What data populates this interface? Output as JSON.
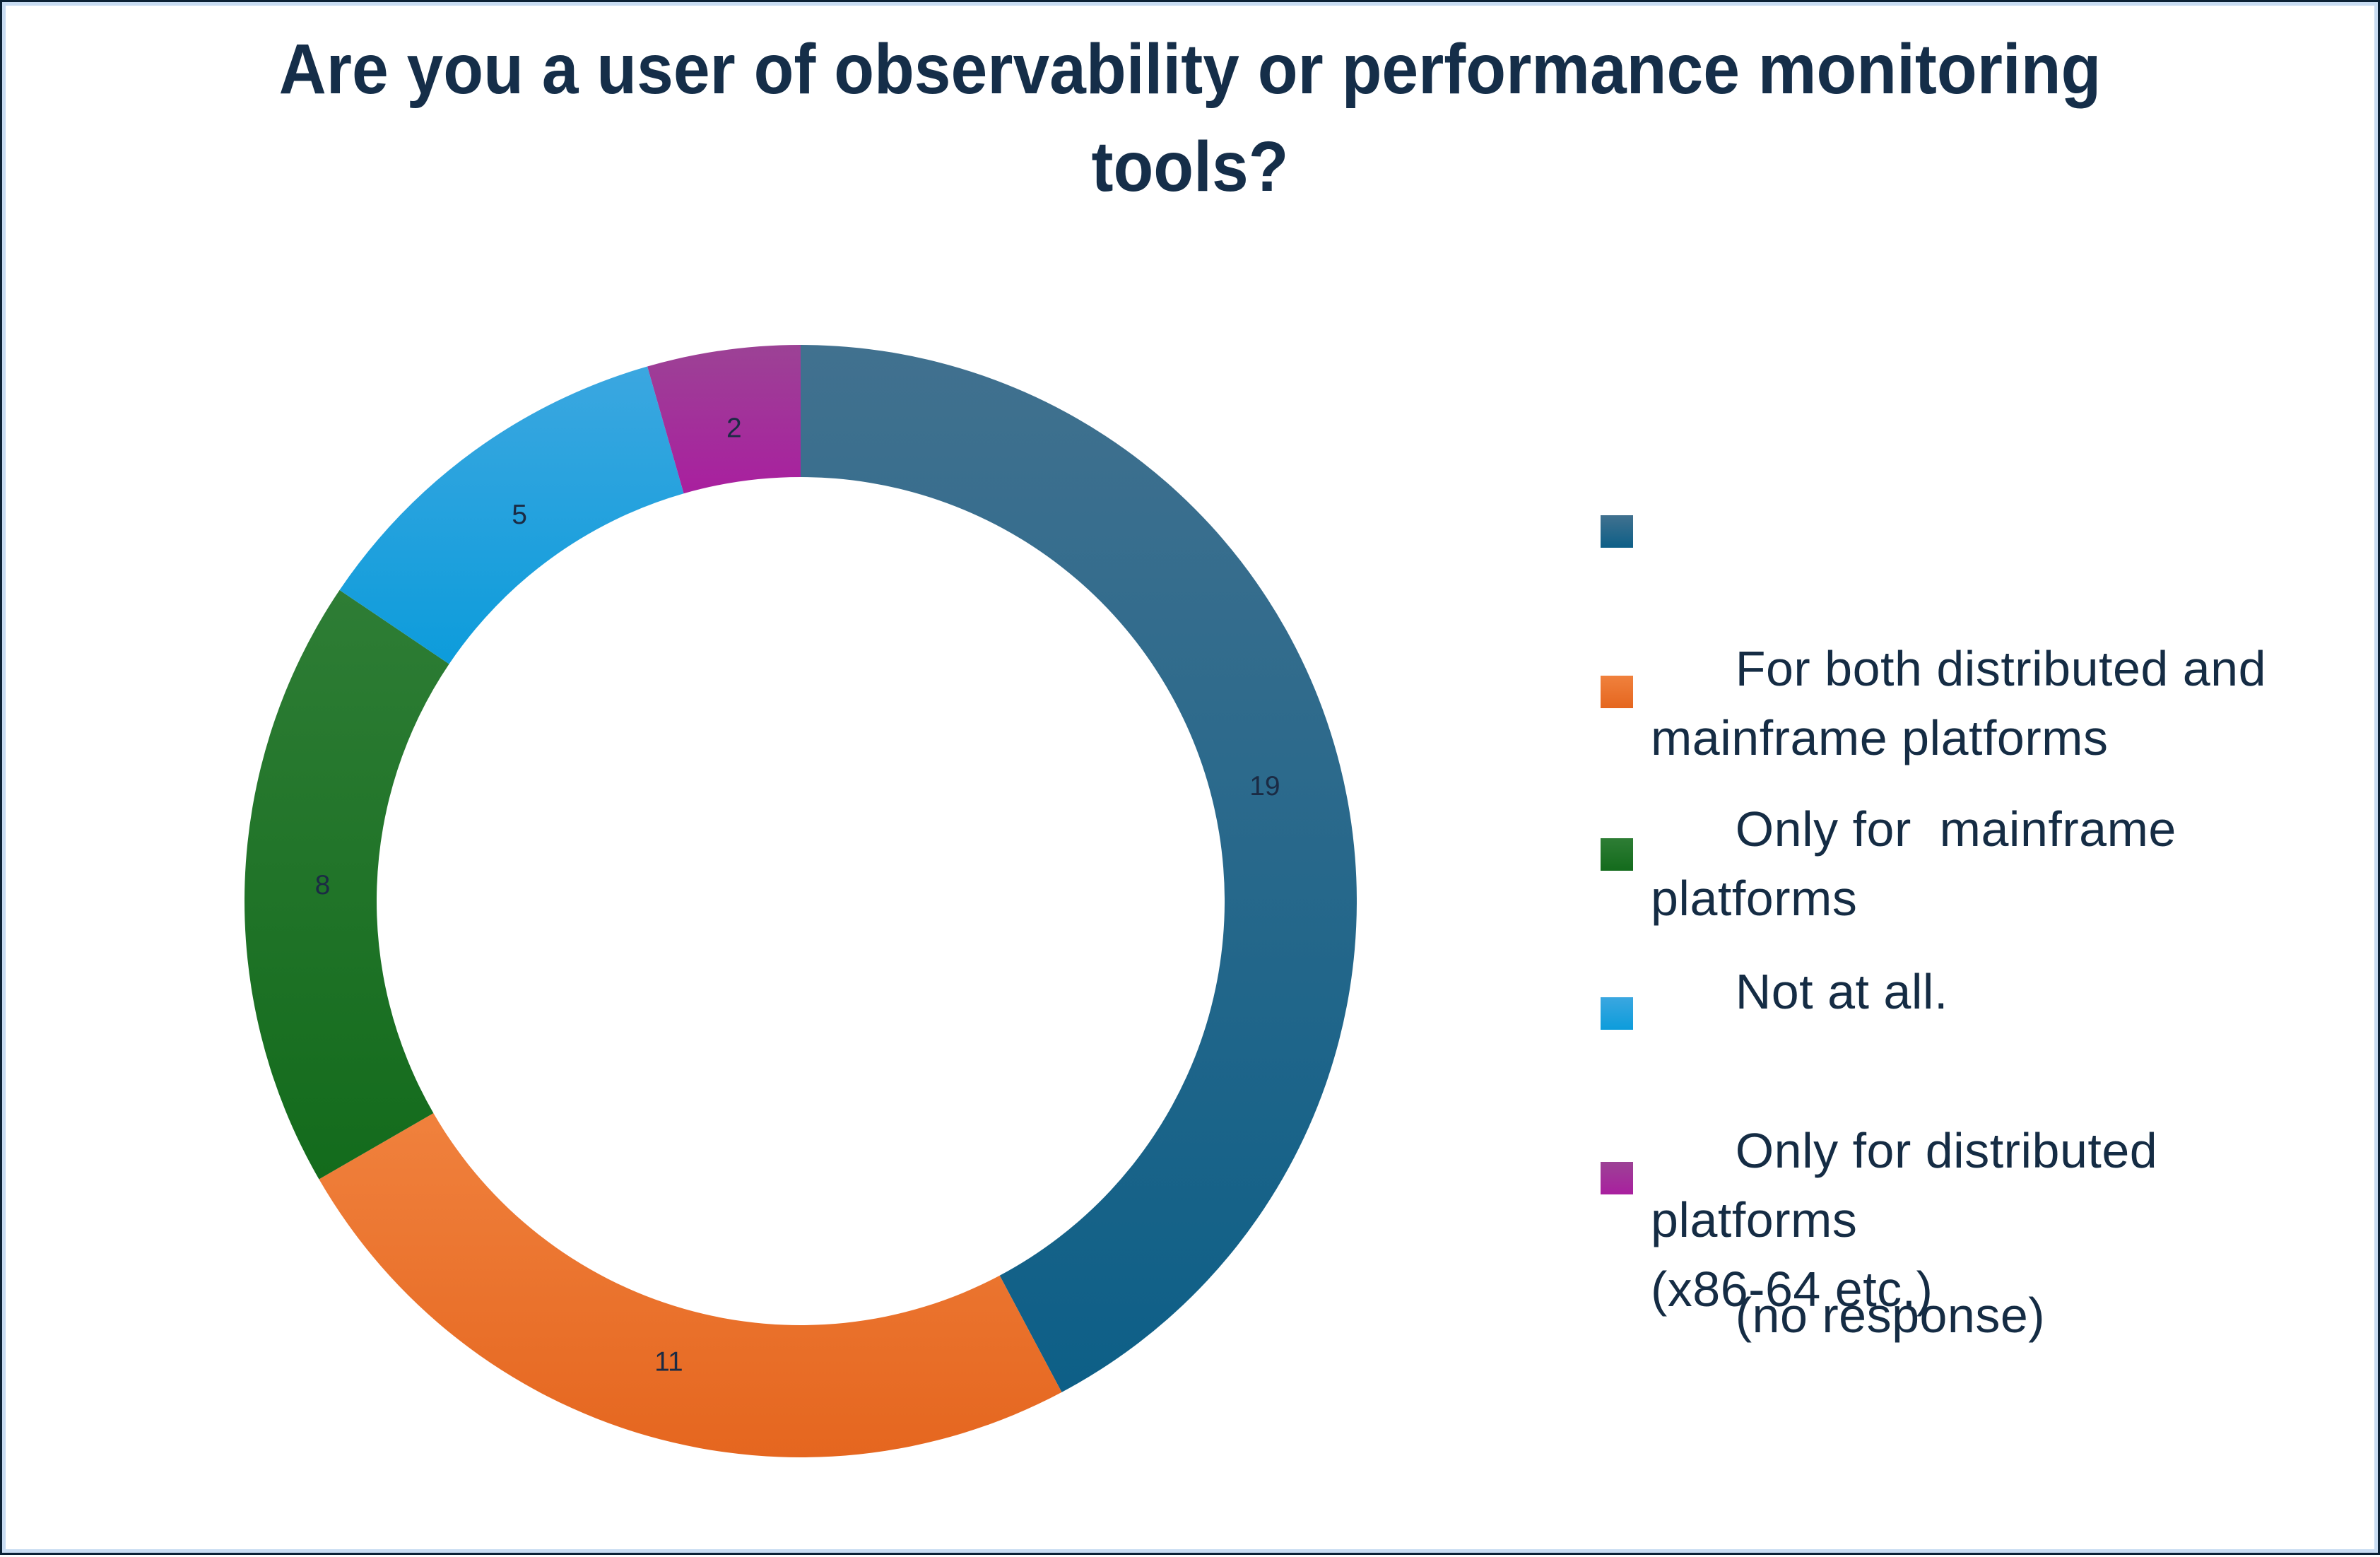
{
  "frame": {
    "background": "#ffffff",
    "border_outer": "#0b2135",
    "border_inner": "#c8dcf2"
  },
  "title": {
    "text": "Are you a user of observability or performance monitoring tools?",
    "color": "#152e49"
  },
  "chart_data": {
    "type": "pie",
    "subtype": "donut",
    "title": "Are you a user of observability or performance monitoring tools?",
    "direction": "clockwise",
    "start_angle_deg": 0,
    "inner_radius_ratio": 0.76,
    "total": 45,
    "legend_position": "right",
    "legend_text_color": "#152c44",
    "data_label_color": "#1b2b44",
    "segments": [
      {
        "label": "For both distributed and mainframe platforms",
        "legend_label": "For both distributed and\nmainframe platforms",
        "value": 19,
        "color": "#0d5f87",
        "color_light": "#41718f"
      },
      {
        "label": "Only for  mainframe platforms",
        "legend_label": "Only for  mainframe platforms",
        "value": 11,
        "color": "#e5661f",
        "color_light": "#f0813d"
      },
      {
        "label": "Not at all.",
        "legend_label": "Not at all.",
        "value": 8,
        "color": "#136b1c",
        "color_light": "#2e7d35"
      },
      {
        "label": "Only for distributed platforms (x86-64 etc.)",
        "legend_label": "Only for distributed platforms\n(x86-64 etc.)",
        "value": 5,
        "color": "#0d9cdb",
        "color_light": "#3ba7e0"
      },
      {
        "label": "(no response)",
        "legend_label": "(no response)",
        "value": 2,
        "color": "#a91f9f",
        "color_light": "#9c4295"
      }
    ]
  }
}
